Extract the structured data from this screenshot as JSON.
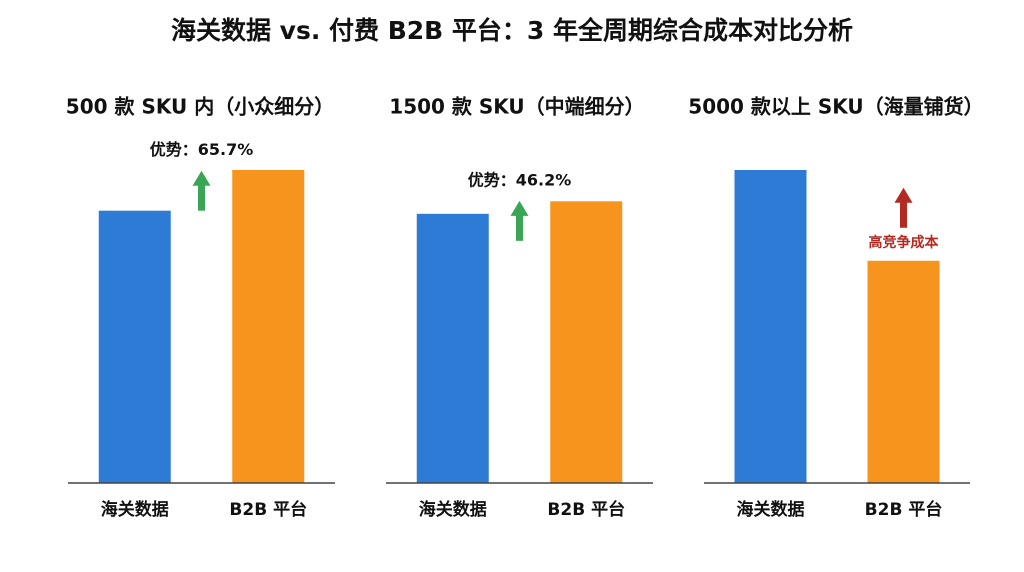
{
  "title": "海关数据 vs. 付费 B2B 平台：3 年全周期综合成本对比分析",
  "chart_data": [
    {
      "type": "bar",
      "title": "500 款 SKU 内（小众细分）",
      "categories": [
        "海关数据",
        "B2B 平台"
      ],
      "values": [
        87,
        100
      ],
      "colors": [
        "#2e7bd6",
        "#f7941d"
      ],
      "ylim": [
        0,
        100
      ],
      "annotation": {
        "text": "优势：65.7%",
        "color": "#3aa655"
      }
    },
    {
      "type": "bar",
      "title": "1500 款 SKU（中端细分）",
      "categories": [
        "海关数据",
        "B2B 平台"
      ],
      "values": [
        86,
        90
      ],
      "colors": [
        "#2e7bd6",
        "#f7941d"
      ],
      "ylim": [
        0,
        100
      ],
      "annotation": {
        "text": "优势：46.2%",
        "color": "#3aa655"
      }
    },
    {
      "type": "bar",
      "title": "5000 款以上 SKU（海量铺货）",
      "categories": [
        "海关数据",
        "B2B 平台"
      ],
      "values": [
        100,
        71
      ],
      "colors": [
        "#2e7bd6",
        "#f7941d"
      ],
      "ylim": [
        0,
        100
      ],
      "annotation": {
        "text": "高竞争成本",
        "color": "#b22a22"
      }
    }
  ]
}
